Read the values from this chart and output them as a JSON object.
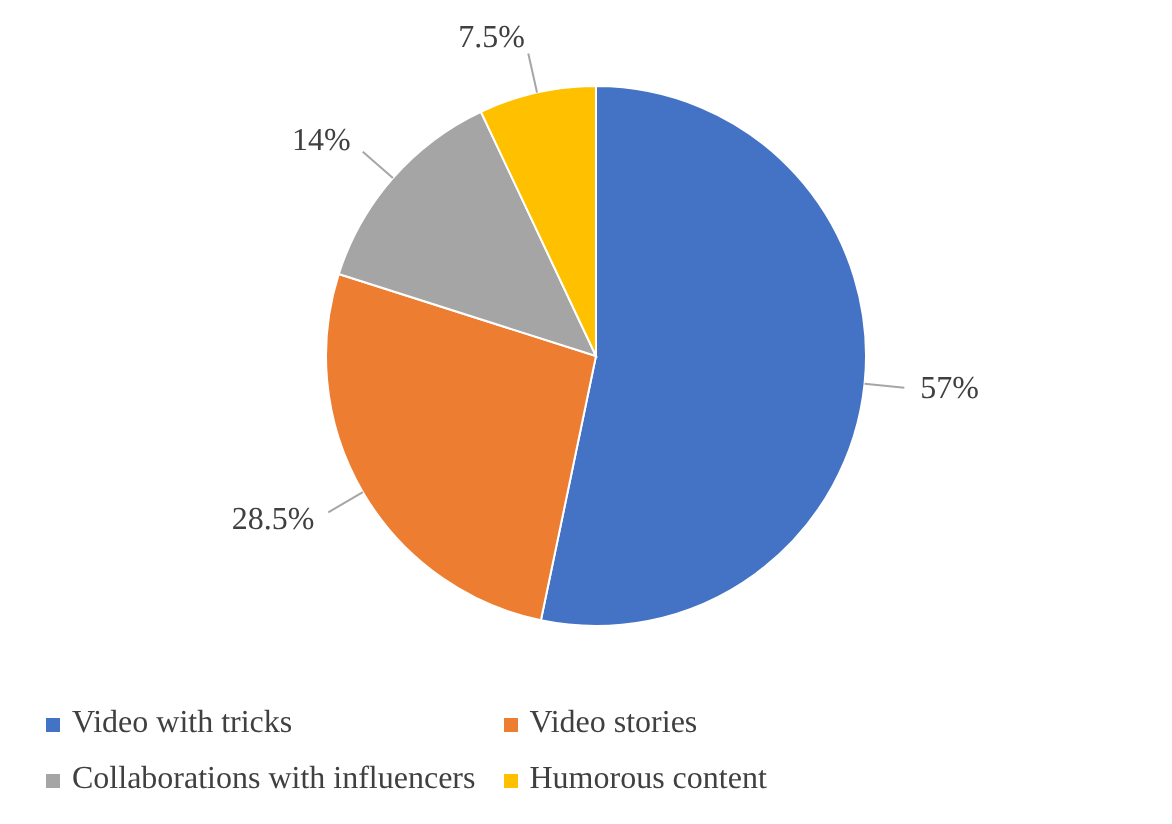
{
  "chart_data": {
    "type": "pie",
    "categories": [
      "Video with tricks",
      "Video stories",
      "Collaborations with influencers",
      "Humorous content"
    ],
    "values": [
      57,
      28.5,
      14,
      7.5
    ],
    "colors": [
      "#4472c4",
      "#ed7d31",
      "#a5a5a5",
      "#ffc000"
    ],
    "value_labels": [
      "57%",
      "28.5%",
      "14%",
      "7.5%"
    ],
    "legend": "bottom"
  }
}
